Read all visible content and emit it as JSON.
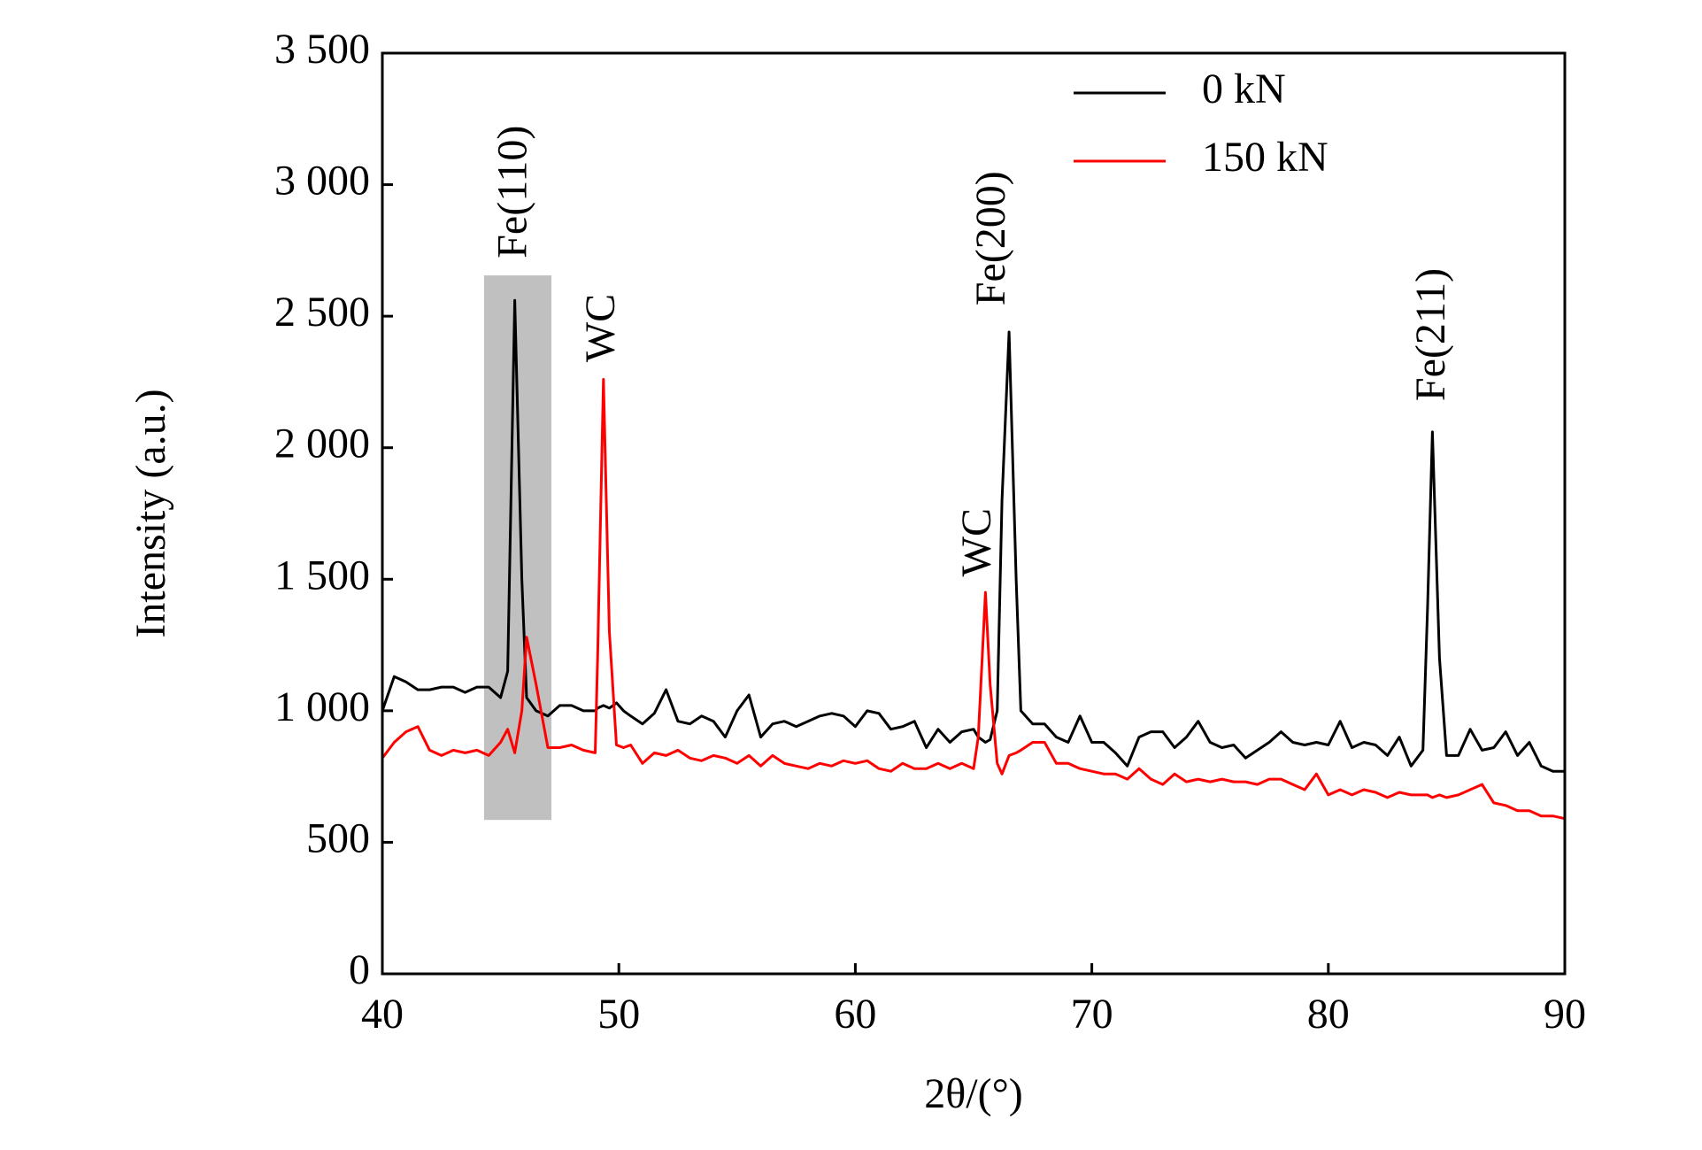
{
  "chart_data": {
    "type": "line",
    "xlabel": "2θ/(°)",
    "ylabel": "Intensity (a.u.)",
    "x": [
      40,
      40.5,
      41,
      41.5,
      42,
      42.5,
      43,
      43.5,
      44,
      44.5,
      45,
      45.3,
      45.6,
      45.9,
      46.1,
      46.5,
      47,
      47.5,
      48,
      48.5,
      49,
      49.1,
      49.35,
      49.6,
      49.9,
      50.2,
      50.5,
      51,
      51.5,
      52,
      52.5,
      53,
      53.5,
      54,
      54.5,
      55,
      55.5,
      56,
      56.5,
      57,
      57.5,
      58,
      58.5,
      59,
      59.5,
      60,
      60.5,
      61,
      61.5,
      62,
      62.5,
      63,
      63.5,
      64,
      64.5,
      65,
      65.2,
      65.5,
      65.7,
      66,
      66.2,
      66.5,
      66.8,
      67,
      67.5,
      68,
      68.5,
      69,
      69.5,
      70,
      70.5,
      71,
      71.5,
      72,
      72.5,
      73,
      73.5,
      74,
      74.5,
      75,
      75.5,
      76,
      76.5,
      77,
      77.5,
      78,
      78.5,
      79,
      79.5,
      80,
      80.5,
      81,
      81.5,
      82,
      82.5,
      83,
      83.5,
      84,
      84.2,
      84.4,
      84.7,
      85,
      85.5,
      86,
      86.5,
      87,
      87.5,
      88,
      88.5,
      89,
      89.5,
      90
    ],
    "series": [
      {
        "name": "0 kN",
        "color": "#000000",
        "values": [
          1000,
          1130,
          1110,
          1080,
          1080,
          1090,
          1090,
          1070,
          1090,
          1090,
          1050,
          1150,
          2560,
          1500,
          1050,
          1000,
          980,
          1020,
          1020,
          1000,
          1000,
          1010,
          1020,
          1010,
          1030,
          1000,
          980,
          950,
          990,
          1080,
          960,
          950,
          980,
          960,
          900,
          1000,
          1060,
          900,
          950,
          960,
          940,
          960,
          980,
          990,
          980,
          940,
          1000,
          990,
          930,
          940,
          960,
          860,
          930,
          880,
          920,
          930,
          900,
          880,
          890,
          1000,
          1800,
          2440,
          1500,
          1000,
          950,
          950,
          900,
          880,
          980,
          880,
          880,
          840,
          790,
          900,
          920,
          920,
          860,
          900,
          960,
          880,
          860,
          870,
          820,
          850,
          880,
          920,
          880,
          870,
          880,
          870,
          960,
          860,
          880,
          870,
          830,
          900,
          790,
          850,
          1400,
          2060,
          1200,
          830,
          830,
          930,
          850,
          860,
          920,
          830,
          880,
          790,
          770,
          770
        ]
      },
      {
        "name": "150 kN",
        "color": "#ff0000",
        "values": [
          820,
          880,
          920,
          940,
          850,
          830,
          850,
          840,
          850,
          830,
          880,
          930,
          840,
          1000,
          1280,
          1100,
          860,
          860,
          870,
          850,
          840,
          1200,
          2260,
          1300,
          870,
          860,
          870,
          800,
          840,
          830,
          850,
          820,
          810,
          830,
          820,
          800,
          830,
          790,
          830,
          800,
          790,
          780,
          800,
          790,
          810,
          800,
          810,
          780,
          770,
          800,
          780,
          780,
          800,
          780,
          800,
          780,
          900,
          1450,
          1100,
          800,
          760,
          830,
          840,
          850,
          880,
          880,
          800,
          800,
          780,
          770,
          760,
          760,
          740,
          780,
          740,
          720,
          760,
          730,
          740,
          730,
          740,
          730,
          730,
          720,
          740,
          740,
          720,
          700,
          760,
          680,
          700,
          680,
          700,
          690,
          670,
          690,
          680,
          680,
          680,
          670,
          680,
          670,
          680,
          700,
          720,
          650,
          640,
          620,
          620,
          600,
          600,
          590
        ]
      }
    ],
    "xlim": [
      40,
      90
    ],
    "xticks": [
      40,
      50,
      60,
      70,
      80,
      90
    ],
    "ylim": [
      0,
      3500
    ],
    "yticks": [
      0,
      500,
      {
        "value": 1000,
        "label": "1 000"
      },
      {
        "value": 1500,
        "label": "1 500"
      },
      {
        "value": 2000,
        "label": "2 000"
      },
      {
        "value": 2500,
        "label": "2 500"
      },
      {
        "value": 3000,
        "label": "3 000"
      },
      {
        "value": 3500,
        "label": "3 500"
      }
    ],
    "legend": "upper right",
    "highlight": {
      "xlim": [
        44.3,
        47.15
      ],
      "ylim": [
        585,
        2655
      ],
      "color": "#c0c0c0"
    },
    "annotations": [
      {
        "text": "Fe(110)",
        "x": 45.66,
        "y": 2720
      },
      {
        "text": "WC",
        "x": 49.4,
        "y": 2325
      },
      {
        "text": "WC",
        "x": 65.3,
        "y": 1510
      },
      {
        "text": "Fe(200)",
        "x": 65.9,
        "y": 2540
      },
      {
        "text": "Fe(211)",
        "x": 84.5,
        "y": 2177
      }
    ]
  }
}
